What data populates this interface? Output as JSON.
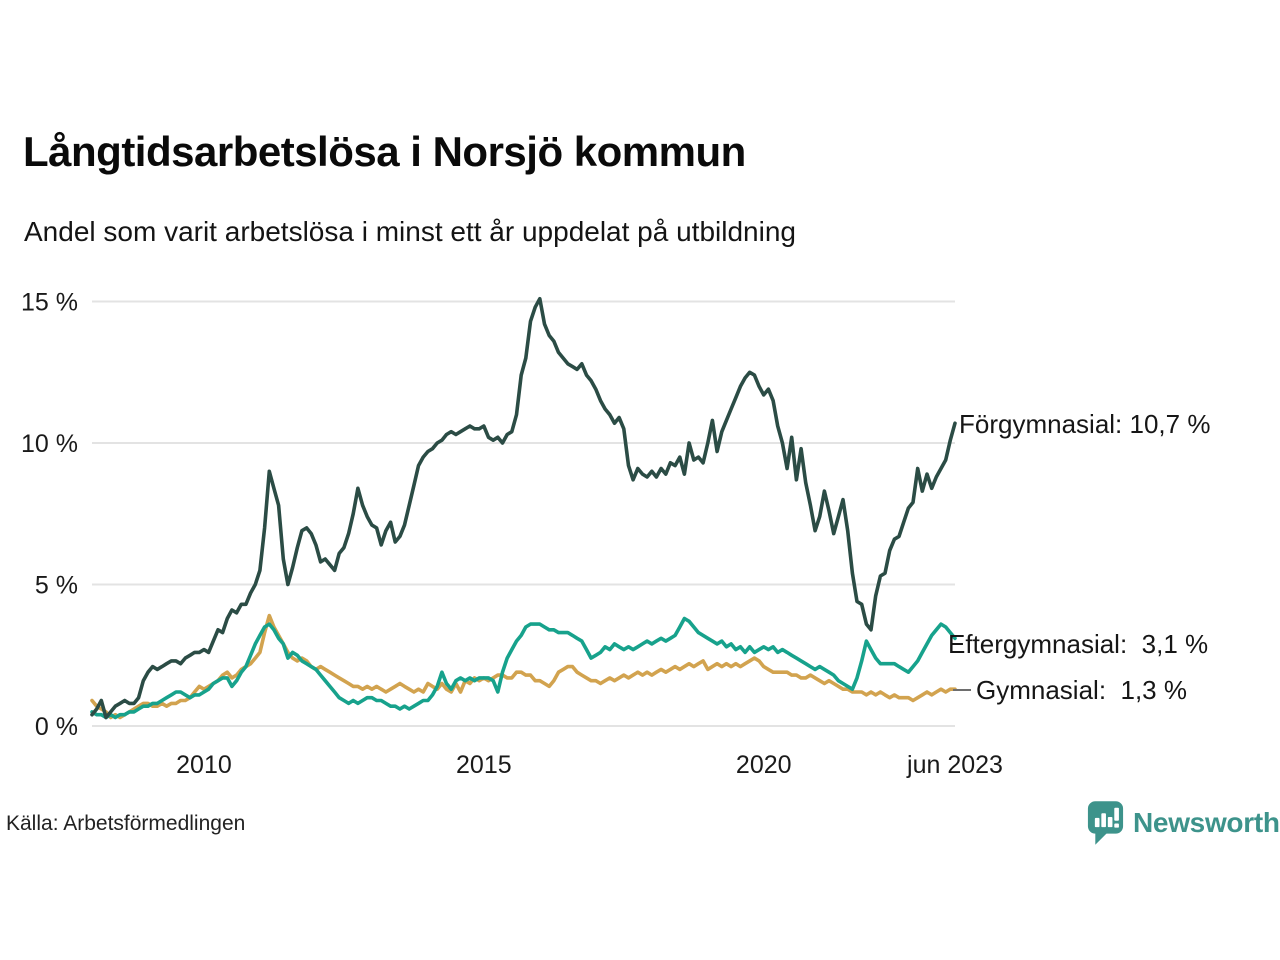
{
  "header": {
    "title": "Långtidsarbetslösa i Norsjö kommun",
    "subtitle": "Andel som varit arbetslösa i minst ett år uppdelat på utbildning"
  },
  "footer": {
    "source": "Källa: Arbetsförmedlingen",
    "brand": "Newsworthy"
  },
  "colors": {
    "forgymnasial": "#2b4c45",
    "eftergymnasial": "#17a28c",
    "gymnasial": "#d2a34f",
    "gridline": "#e3e3e3",
    "axis_text": "#1a1a1a",
    "brand_teal": "#3d938b",
    "leader_dash": "#6e6e6e"
  },
  "chart_data": {
    "type": "line",
    "title": "Långtidsarbetslösa i Norsjö kommun",
    "subtitle": "Andel som varit arbetslösa i minst ett år uppdelat på utbildning",
    "unit": "%",
    "frequency": "monthly",
    "x_start": "2008-01",
    "x_end": "2023-06",
    "ylim": [
      0,
      15.5
    ],
    "grid": "horizontal",
    "legend_position": "end-of-line-labels",
    "y_ticks": [
      {
        "value": 0,
        "label": "0 %"
      },
      {
        "value": 5,
        "label": "5 %"
      },
      {
        "value": 10,
        "label": "10 %"
      },
      {
        "value": 15,
        "label": "15 %"
      }
    ],
    "x_ticks": [
      {
        "t": 2010.0,
        "label": "2010"
      },
      {
        "t": 2015.0,
        "label": "2015"
      },
      {
        "t": 2020.0,
        "label": "2020"
      },
      {
        "t": 2023.4167,
        "label": "jun 2023"
      }
    ],
    "series": [
      {
        "name": "Förgymnasial",
        "end_label": "Förgymnasial: 10,7 %",
        "last_value": "10,7 %",
        "color": "#2b4c45",
        "values": [
          0.4,
          0.6,
          0.9,
          0.3,
          0.5,
          0.7,
          0.8,
          0.9,
          0.8,
          0.8,
          1.0,
          1.6,
          1.9,
          2.1,
          2.0,
          2.1,
          2.2,
          2.3,
          2.3,
          2.2,
          2.4,
          2.5,
          2.6,
          2.6,
          2.7,
          2.6,
          3.0,
          3.4,
          3.3,
          3.8,
          4.1,
          4.0,
          4.3,
          4.3,
          4.7,
          5.0,
          5.5,
          7.0,
          9.0,
          8.4,
          7.8,
          5.9,
          5.0,
          5.6,
          6.3,
          6.9,
          7.0,
          6.8,
          6.4,
          5.8,
          5.9,
          5.7,
          5.5,
          6.1,
          6.3,
          6.8,
          7.5,
          8.4,
          7.8,
          7.4,
          7.1,
          7.0,
          6.4,
          6.9,
          7.2,
          6.5,
          6.7,
          7.1,
          7.8,
          8.5,
          9.2,
          9.5,
          9.7,
          9.8,
          10.0,
          10.1,
          10.3,
          10.4,
          10.3,
          10.4,
          10.5,
          10.6,
          10.5,
          10.5,
          10.6,
          10.2,
          10.1,
          10.2,
          10.0,
          10.3,
          10.4,
          11.0,
          12.4,
          13.0,
          14.3,
          14.8,
          15.1,
          14.2,
          13.8,
          13.6,
          13.2,
          13.0,
          12.8,
          12.7,
          12.6,
          12.8,
          12.4,
          12.2,
          11.9,
          11.5,
          11.2,
          11.0,
          10.7,
          10.9,
          10.5,
          9.2,
          8.7,
          9.1,
          8.9,
          8.8,
          9.0,
          8.8,
          9.1,
          8.9,
          9.3,
          9.2,
          9.5,
          8.9,
          10.0,
          9.4,
          9.5,
          9.3,
          10.0,
          10.8,
          9.7,
          10.4,
          10.8,
          11.2,
          11.6,
          12.0,
          12.3,
          12.5,
          12.4,
          12.0,
          11.7,
          11.9,
          11.5,
          10.6,
          10.0,
          9.1,
          10.2,
          8.7,
          9.8,
          8.6,
          7.8,
          6.9,
          7.4,
          8.3,
          7.6,
          6.8,
          7.4,
          8.0,
          6.9,
          5.4,
          4.4,
          4.3,
          3.6,
          3.4,
          4.6,
          5.3,
          5.4,
          6.2,
          6.6,
          6.7,
          7.2,
          7.7,
          7.9,
          9.1,
          8.3,
          8.9,
          8.4,
          8.8,
          9.1,
          9.4,
          10.1,
          10.7
        ]
      },
      {
        "name": "Eftergymnasial",
        "end_label": "Eftergymnasial:  3,1 %",
        "last_value": "3,1 %",
        "color": "#17a28c",
        "values": [
          0.5,
          0.4,
          0.4,
          0.3,
          0.4,
          0.3,
          0.4,
          0.4,
          0.5,
          0.5,
          0.6,
          0.7,
          0.7,
          0.8,
          0.8,
          0.9,
          1.0,
          1.1,
          1.2,
          1.2,
          1.1,
          1.0,
          1.1,
          1.1,
          1.2,
          1.3,
          1.5,
          1.6,
          1.7,
          1.7,
          1.4,
          1.6,
          1.9,
          2.1,
          2.5,
          2.9,
          3.2,
          3.5,
          3.6,
          3.4,
          3.1,
          2.9,
          2.4,
          2.6,
          2.5,
          2.3,
          2.2,
          2.1,
          2.0,
          1.8,
          1.6,
          1.4,
          1.2,
          1.0,
          0.9,
          0.8,
          0.9,
          0.8,
          0.9,
          1.0,
          1.0,
          0.9,
          0.9,
          0.8,
          0.7,
          0.7,
          0.6,
          0.7,
          0.6,
          0.7,
          0.8,
          0.9,
          0.9,
          1.1,
          1.4,
          1.9,
          1.5,
          1.3,
          1.6,
          1.7,
          1.6,
          1.7,
          1.6,
          1.7,
          1.7,
          1.7,
          1.6,
          1.2,
          1.9,
          2.4,
          2.7,
          3.0,
          3.2,
          3.5,
          3.6,
          3.6,
          3.6,
          3.5,
          3.4,
          3.4,
          3.3,
          3.3,
          3.3,
          3.2,
          3.1,
          3.0,
          2.7,
          2.4,
          2.5,
          2.6,
          2.8,
          2.7,
          2.9,
          2.8,
          2.7,
          2.8,
          2.7,
          2.8,
          2.9,
          3.0,
          2.9,
          3.0,
          3.1,
          3.0,
          3.1,
          3.2,
          3.5,
          3.8,
          3.7,
          3.5,
          3.3,
          3.2,
          3.1,
          3.0,
          2.9,
          3.0,
          2.8,
          2.9,
          2.7,
          2.8,
          2.6,
          2.8,
          2.6,
          2.7,
          2.8,
          2.7,
          2.8,
          2.6,
          2.7,
          2.6,
          2.5,
          2.4,
          2.3,
          2.2,
          2.1,
          2.0,
          2.1,
          2.0,
          1.9,
          1.8,
          1.6,
          1.5,
          1.4,
          1.3,
          1.7,
          2.3,
          3.0,
          2.7,
          2.4,
          2.2,
          2.2,
          2.2,
          2.2,
          2.1,
          2.0,
          1.9,
          2.1,
          2.3,
          2.6,
          2.9,
          3.2,
          3.4,
          3.6,
          3.5,
          3.3,
          3.1
        ]
      },
      {
        "name": "Gymnasial",
        "end_label": "Gymnasial:  1,3 %",
        "last_value": "1,3 %",
        "color": "#d2a34f",
        "values": [
          0.9,
          0.7,
          0.6,
          0.5,
          0.3,
          0.4,
          0.3,
          0.4,
          0.5,
          0.6,
          0.7,
          0.8,
          0.8,
          0.7,
          0.7,
          0.8,
          0.7,
          0.8,
          0.8,
          0.9,
          0.9,
          1.0,
          1.2,
          1.4,
          1.3,
          1.4,
          1.5,
          1.6,
          1.8,
          1.9,
          1.7,
          1.8,
          2.0,
          2.1,
          2.2,
          2.4,
          2.6,
          3.3,
          3.9,
          3.5,
          3.2,
          2.9,
          2.6,
          2.4,
          2.3,
          2.4,
          2.3,
          2.1,
          2.0,
          2.1,
          2.0,
          1.9,
          1.8,
          1.7,
          1.6,
          1.5,
          1.4,
          1.4,
          1.3,
          1.4,
          1.3,
          1.4,
          1.3,
          1.2,
          1.3,
          1.4,
          1.5,
          1.4,
          1.3,
          1.2,
          1.3,
          1.2,
          1.5,
          1.4,
          1.3,
          1.5,
          1.3,
          1.2,
          1.5,
          1.2,
          1.6,
          1.5,
          1.7,
          1.6,
          1.7,
          1.6,
          1.7,
          1.8,
          1.8,
          1.7,
          1.7,
          1.9,
          1.9,
          1.8,
          1.8,
          1.6,
          1.6,
          1.5,
          1.4,
          1.6,
          1.9,
          2.0,
          2.1,
          2.1,
          1.9,
          1.8,
          1.7,
          1.6,
          1.6,
          1.5,
          1.6,
          1.7,
          1.6,
          1.7,
          1.8,
          1.7,
          1.8,
          1.9,
          1.8,
          1.9,
          1.8,
          1.9,
          2.0,
          1.9,
          2.0,
          2.1,
          2.0,
          2.1,
          2.2,
          2.1,
          2.2,
          2.3,
          2.0,
          2.1,
          2.2,
          2.1,
          2.2,
          2.1,
          2.2,
          2.1,
          2.2,
          2.3,
          2.4,
          2.3,
          2.1,
          2.0,
          1.9,
          1.9,
          1.9,
          1.9,
          1.8,
          1.8,
          1.7,
          1.7,
          1.8,
          1.7,
          1.6,
          1.5,
          1.6,
          1.5,
          1.4,
          1.3,
          1.3,
          1.2,
          1.2,
          1.2,
          1.1,
          1.2,
          1.1,
          1.2,
          1.1,
          1.0,
          1.1,
          1.0,
          1.0,
          1.0,
          0.9,
          1.0,
          1.1,
          1.2,
          1.1,
          1.2,
          1.3,
          1.2,
          1.3,
          1.3
        ]
      }
    ]
  }
}
